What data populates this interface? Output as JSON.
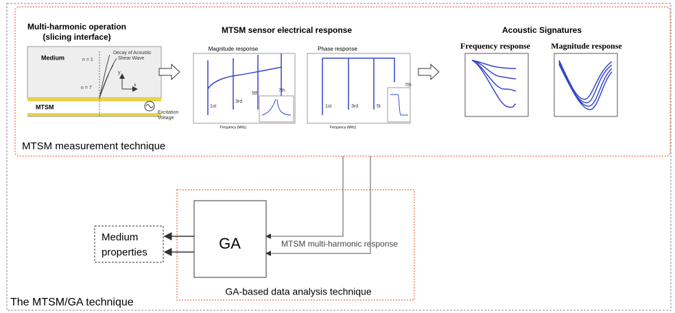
{
  "top_section": {
    "label": "MTSM measurement technique",
    "multi_harmonic": {
      "title_line1": "Multi-harmonic operation",
      "title_line2": "(slicing interface)",
      "medium": "Medium",
      "n1": "n = 1",
      "n7": "n = 7",
      "decay": [
        "Decay of Acoustic",
        "Shear Wave"
      ],
      "y": "y",
      "x": "x",
      "mtsm": "MTSM",
      "excitation": [
        "Excitation",
        "Voltage"
      ]
    },
    "electrical_response": {
      "title": "MTSM sensor electrical response",
      "magnitude": {
        "title": "Magnitude response",
        "harmonics": [
          "1st",
          "3rd",
          "5th",
          "7th"
        ],
        "x_label": "Frequency (MHz)"
      },
      "phase": {
        "title": "Phase response",
        "harmonics": [
          "1st",
          "3rd",
          "5t",
          "7th"
        ],
        "x_label": "Frequency (MHz)"
      }
    },
    "acoustic_signatures": {
      "title": "Acoustic Signatures",
      "frequency": "Frequency response",
      "magnitude": "Magnitude response"
    }
  },
  "bottom_section": {
    "label": "GA-based data analysis technique",
    "ga": "GA",
    "input": "MTSM multi-harmonic response",
    "output": [
      "Medium",
      "properties"
    ]
  },
  "footer": "The MTSM/GA technique"
}
